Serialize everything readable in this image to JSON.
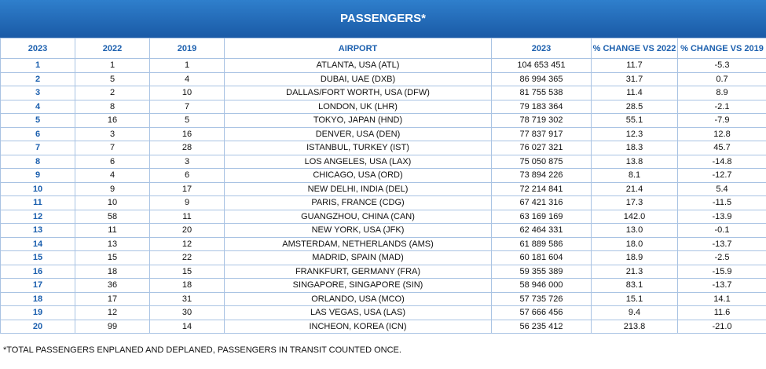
{
  "header": {
    "title": "PASSENGERS*"
  },
  "table": {
    "columns": [
      "2023",
      "2022",
      "2019",
      "AIRPORT",
      "2023",
      "% CHANGE VS 2022",
      "% CHANGE VS 2019"
    ],
    "rows": [
      [
        "1",
        "1",
        "1",
        "ATLANTA, USA (ATL)",
        "104 653 451",
        "11.7",
        "-5.3"
      ],
      [
        "2",
        "5",
        "4",
        "DUBAI, UAE (DXB)",
        "86 994 365",
        "31.7",
        "0.7"
      ],
      [
        "3",
        "2",
        "10",
        "DALLAS/FORT WORTH, USA (DFW)",
        "81 755 538",
        "11.4",
        "8.9"
      ],
      [
        "4",
        "8",
        "7",
        "LONDON, UK (LHR)",
        "79 183 364",
        "28.5",
        "-2.1"
      ],
      [
        "5",
        "16",
        "5",
        "TOKYO, JAPAN (HND)",
        "78 719 302",
        "55.1",
        "-7.9"
      ],
      [
        "6",
        "3",
        "16",
        "DENVER, USA (DEN)",
        "77 837 917",
        "12.3",
        "12.8"
      ],
      [
        "7",
        "7",
        "28",
        "ISTANBUL, TURKEY (IST)",
        "76 027 321",
        "18.3",
        "45.7"
      ],
      [
        "8",
        "6",
        "3",
        "LOS ANGELES, USA (LAX)",
        "75 050 875",
        "13.8",
        "-14.8"
      ],
      [
        "9",
        "4",
        "6",
        "CHICAGO, USA (ORD)",
        "73 894 226",
        "8.1",
        "-12.7"
      ],
      [
        "10",
        "9",
        "17",
        "NEW DELHI, INDIA (DEL)",
        "72 214 841",
        "21.4",
        "5.4"
      ],
      [
        "11",
        "10",
        "9",
        "PARIS, FRANCE (CDG)",
        "67 421 316",
        "17.3",
        "-11.5"
      ],
      [
        "12",
        "58",
        "11",
        "GUANGZHOU, CHINA (CAN)",
        "63 169 169",
        "142.0",
        "-13.9"
      ],
      [
        "13",
        "11",
        "20",
        "NEW YORK, USA (JFK)",
        "62 464 331",
        "13.0",
        "-0.1"
      ],
      [
        "14",
        "13",
        "12",
        "AMSTERDAM, NETHERLANDS (AMS)",
        "61 889 586",
        "18.0",
        "-13.7"
      ],
      [
        "15",
        "15",
        "22",
        "MADRID, SPAIN (MAD)",
        "60 181 604",
        "18.9",
        "-2.5"
      ],
      [
        "16",
        "18",
        "15",
        "FRANKFURT, GERMANY (FRA)",
        "59 355 389",
        "21.3",
        "-15.9"
      ],
      [
        "17",
        "36",
        "18",
        "SINGAPORE, SINGAPORE (SIN)",
        "58 946 000",
        "83.1",
        "-13.7"
      ],
      [
        "18",
        "17",
        "31",
        "ORLANDO, USA (MCO)",
        "57 735 726",
        "15.1",
        "14.1"
      ],
      [
        "19",
        "12",
        "30",
        "LAS VEGAS, USA (LAS)",
        "57 666 456",
        "9.4",
        "11.6"
      ],
      [
        "20",
        "99",
        "14",
        "INCHEON, KOREA (ICN)",
        "56 235 412",
        "213.8",
        "-21.0"
      ]
    ]
  },
  "footnote": "*TOTAL PASSENGERS ENPLANED AND DEPLANED, PASSENGERS IN TRANSIT COUNTED ONCE."
}
